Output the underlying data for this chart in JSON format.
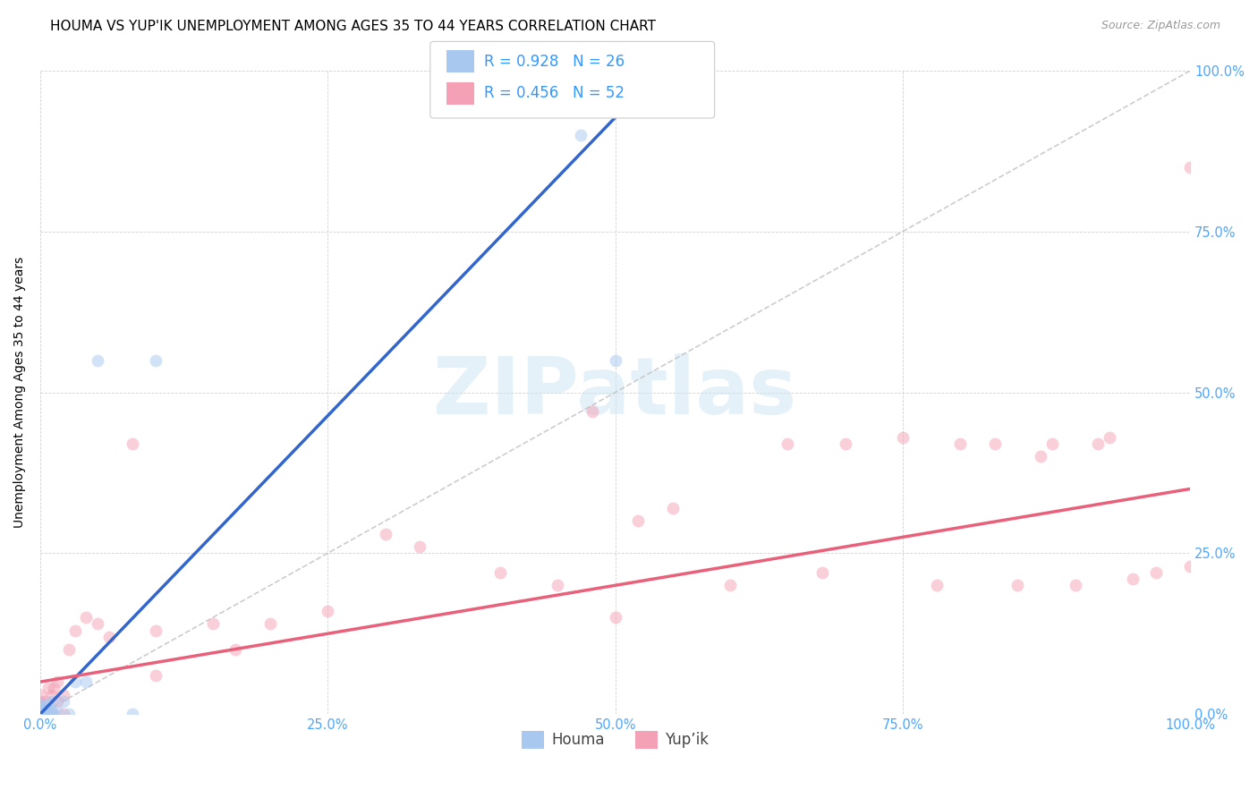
{
  "title": "HOUMA VS YUP'IK UNEMPLOYMENT AMONG AGES 35 TO 44 YEARS CORRELATION CHART",
  "source": "Source: ZipAtlas.com",
  "tick_color": "#4da6ff",
  "ylabel": "Unemployment Among Ages 35 to 44 years",
  "watermark_text": "ZIPatlas",
  "houma_color": "#a8c8f0",
  "yupik_color": "#f4a0b5",
  "houma_line_color": "#3366cc",
  "yupik_line_color": "#e8607a",
  "diagonal_color": "#c0c0c0",
  "R_houma": 0.928,
  "N_houma": 26,
  "R_yupik": 0.456,
  "N_yupik": 52,
  "houma_x": [
    0.0,
    0.0,
    0.0,
    0.0,
    0.0,
    0.0,
    0.0,
    0.0,
    0.0,
    0.005,
    0.005,
    0.007,
    0.007,
    0.01,
    0.01,
    0.012,
    0.015,
    0.02,
    0.025,
    0.03,
    0.04,
    0.05,
    0.08,
    0.1,
    0.47,
    0.5
  ],
  "houma_y": [
    0.0,
    0.0,
    0.0,
    0.005,
    0.005,
    0.008,
    0.01,
    0.012,
    0.015,
    0.0,
    0.01,
    0.005,
    0.015,
    0.005,
    0.02,
    0.0,
    0.005,
    0.02,
    0.0,
    0.05,
    0.05,
    0.55,
    0.0,
    0.55,
    0.9,
    0.55
  ],
  "yupik_x": [
    0.0,
    0.0,
    0.0,
    0.0,
    0.005,
    0.005,
    0.007,
    0.01,
    0.01,
    0.012,
    0.015,
    0.015,
    0.02,
    0.02,
    0.025,
    0.03,
    0.04,
    0.05,
    0.06,
    0.08,
    0.1,
    0.1,
    0.15,
    0.17,
    0.2,
    0.25,
    0.3,
    0.33,
    0.4,
    0.45,
    0.48,
    0.5,
    0.52,
    0.55,
    0.6,
    0.65,
    0.68,
    0.7,
    0.75,
    0.78,
    0.8,
    0.83,
    0.85,
    0.87,
    0.88,
    0.9,
    0.92,
    0.93,
    0.95,
    0.97,
    1.0,
    1.0
  ],
  "yupik_y": [
    0.0,
    0.01,
    0.02,
    0.03,
    0.0,
    0.02,
    0.04,
    0.0,
    0.03,
    0.04,
    0.02,
    0.05,
    0.0,
    0.03,
    0.1,
    0.13,
    0.15,
    0.14,
    0.12,
    0.42,
    0.06,
    0.13,
    0.14,
    0.1,
    0.14,
    0.16,
    0.28,
    0.26,
    0.22,
    0.2,
    0.47,
    0.15,
    0.3,
    0.32,
    0.2,
    0.42,
    0.22,
    0.42,
    0.43,
    0.2,
    0.42,
    0.42,
    0.2,
    0.4,
    0.42,
    0.2,
    0.42,
    0.43,
    0.21,
    0.22,
    0.85,
    0.23
  ],
  "houma_line_x": [
    0.0,
    0.55
  ],
  "houma_line_y": [
    0.0,
    1.02
  ],
  "yupik_line_x": [
    0.0,
    1.0
  ],
  "yupik_line_y": [
    0.05,
    0.35
  ],
  "xlim": [
    0.0,
    1.0
  ],
  "ylim": [
    0.0,
    1.0
  ],
  "xtick_vals": [
    0.0,
    0.25,
    0.5,
    0.75,
    1.0
  ],
  "xtick_labels": [
    "0.0%",
    "25.0%",
    "50.0%",
    "75.0%",
    "100.0%"
  ],
  "ytick_vals": [
    0.0,
    0.25,
    0.5,
    0.75,
    1.0
  ],
  "right_ytick_labels": [
    "0.0%",
    "25.0%",
    "50.0%",
    "75.0%",
    "100.0%"
  ],
  "marker_size": 100,
  "alpha": 0.5,
  "legend_R_color": "#3399ff",
  "title_fontsize": 11,
  "axis_label_fontsize": 10,
  "tick_fontsize": 10.5,
  "legend_fontsize": 12
}
